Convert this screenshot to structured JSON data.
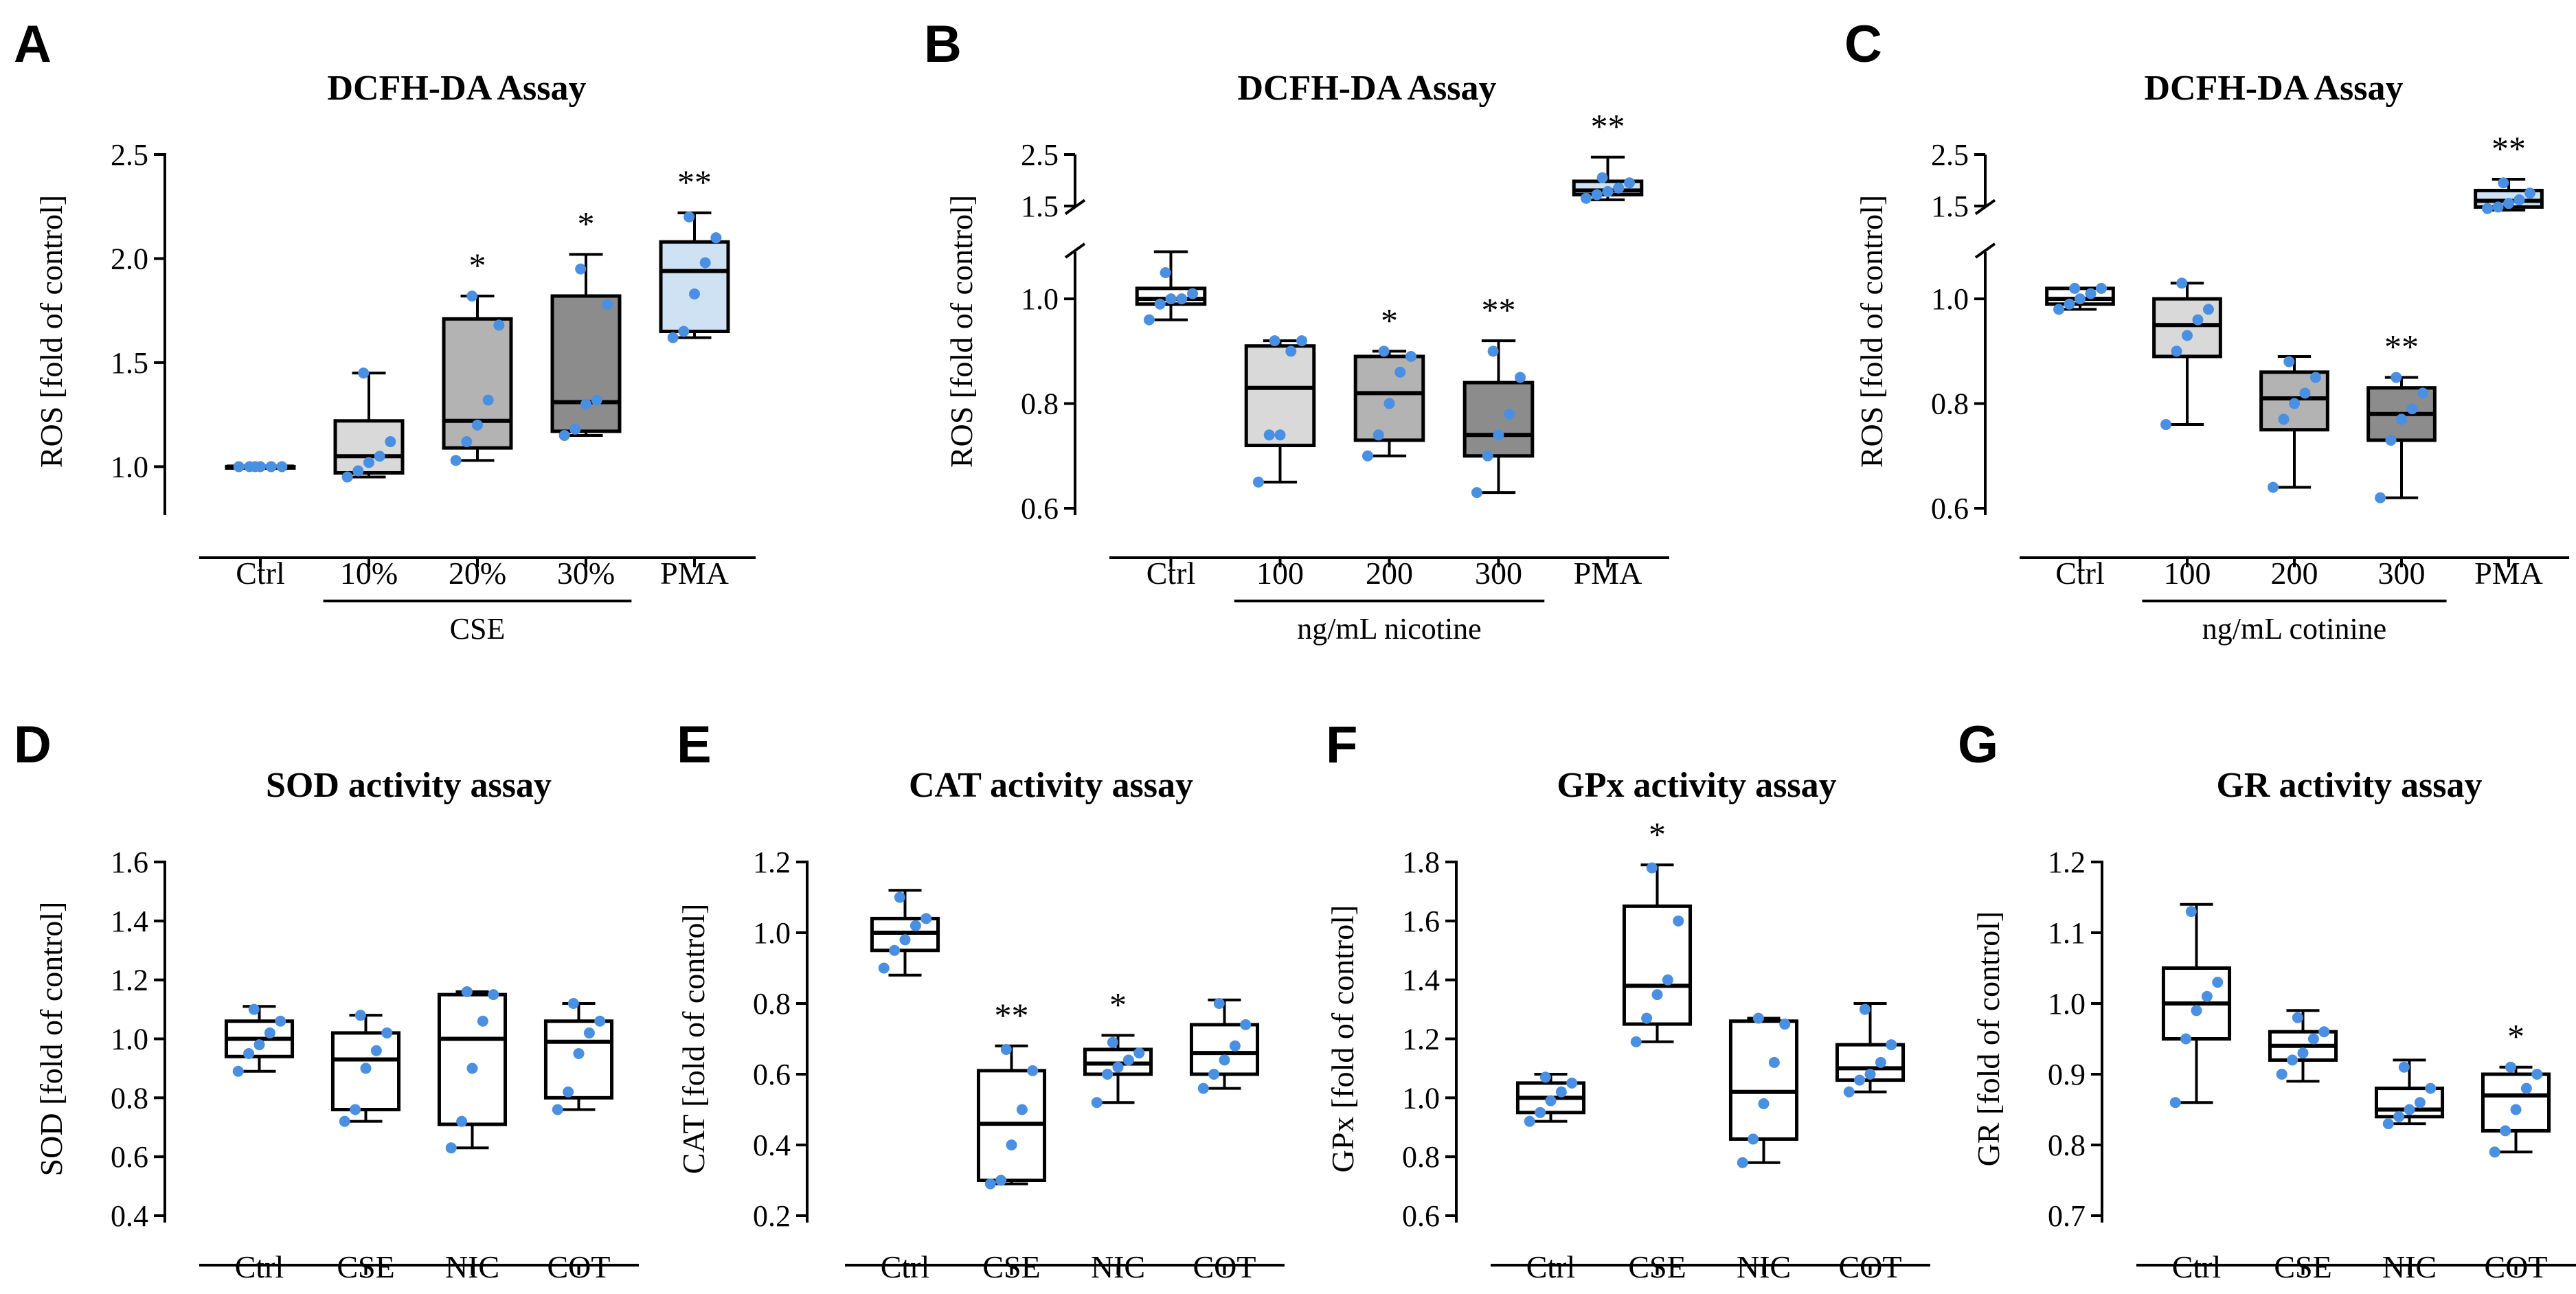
{
  "point_color": "#4a90e2",
  "chart_data": [
    {
      "id": "A",
      "letter": "A",
      "type": "box",
      "title": "DCFH-DA Assay",
      "ylabel": "ROS [fold of control]",
      "ylim": [
        0.8,
        2.5
      ],
      "yticks": [
        "1.0",
        "1.5",
        "2.0",
        "2.5"
      ],
      "ytick_values": [
        1.0,
        1.5,
        2.0,
        2.5
      ],
      "categories": [
        "Ctrl",
        "10%",
        "20%",
        "30%",
        "PMA"
      ],
      "group": {
        "label": "CSE",
        "from": 1,
        "to": 3
      },
      "boxes": [
        {
          "whisker_low": 1.0,
          "q1": 1.0,
          "median": 1.0,
          "q3": 1.0,
          "whisker_high": 1.0,
          "points": [
            1.0,
            1.0,
            1.0,
            1.0,
            1.0,
            1.0
          ],
          "fill": "#ffffff",
          "sig": ""
        },
        {
          "whisker_low": 0.95,
          "q1": 0.97,
          "median": 1.05,
          "q3": 1.22,
          "whisker_high": 1.45,
          "points": [
            0.95,
            0.98,
            1.02,
            1.05,
            1.12,
            1.45
          ],
          "fill": "#d9d9d9",
          "sig": ""
        },
        {
          "whisker_low": 1.03,
          "q1": 1.09,
          "median": 1.22,
          "q3": 1.71,
          "whisker_high": 1.82,
          "points": [
            1.03,
            1.12,
            1.2,
            1.32,
            1.68,
            1.82
          ],
          "fill": "#b3b3b3",
          "sig": "*"
        },
        {
          "whisker_low": 1.15,
          "q1": 1.17,
          "median": 1.31,
          "q3": 1.82,
          "whisker_high": 2.02,
          "points": [
            1.15,
            1.18,
            1.3,
            1.32,
            1.78,
            1.95
          ],
          "fill": "#8c8c8c",
          "sig": "*"
        },
        {
          "whisker_low": 1.62,
          "q1": 1.65,
          "median": 1.94,
          "q3": 2.08,
          "whisker_high": 2.22,
          "points": [
            1.62,
            1.65,
            1.83,
            1.98,
            2.1,
            2.2
          ],
          "fill": "#cfe2f3",
          "sig": "**"
        }
      ]
    },
    {
      "id": "B",
      "letter": "B",
      "type": "box",
      "title": "DCFH-DA Assay",
      "ylabel": "ROS [fold of control]",
      "ylim": [
        0.6,
        2.5
      ],
      "axis_break": [
        1.1,
        1.4
      ],
      "yticks": [
        "0.6",
        "0.8",
        "1.0",
        "1.5",
        "2.5"
      ],
      "ytick_values": [
        0.6,
        0.8,
        1.0,
        1.5,
        2.5
      ],
      "categories": [
        "Ctrl",
        "100",
        "200",
        "300",
        "PMA"
      ],
      "group": {
        "label": "ng/mL nicotine",
        "from": 1,
        "to": 3
      },
      "boxes": [
        {
          "whisker_low": 0.96,
          "q1": 0.99,
          "median": 1.0,
          "q3": 1.02,
          "whisker_high": 1.09,
          "points": [
            0.96,
            0.99,
            1.0,
            1.0,
            1.01,
            1.05
          ],
          "fill": "#ffffff",
          "sig": ""
        },
        {
          "whisker_low": 0.65,
          "q1": 0.72,
          "median": 0.83,
          "q3": 0.91,
          "whisker_high": 0.92,
          "points": [
            0.65,
            0.74,
            0.74,
            0.9,
            0.92,
            0.92
          ],
          "fill": "#d9d9d9",
          "sig": ""
        },
        {
          "whisker_low": 0.7,
          "q1": 0.73,
          "median": 0.82,
          "q3": 0.89,
          "whisker_high": 0.9,
          "points": [
            0.7,
            0.74,
            0.8,
            0.86,
            0.89,
            0.9
          ],
          "fill": "#b3b3b3",
          "sig": "*"
        },
        {
          "whisker_low": 0.63,
          "q1": 0.7,
          "median": 0.74,
          "q3": 0.84,
          "whisker_high": 0.92,
          "points": [
            0.63,
            0.7,
            0.74,
            0.78,
            0.85,
            0.9
          ],
          "fill": "#8c8c8c",
          "sig": "**"
        },
        {
          "whisker_low": 1.62,
          "q1": 1.72,
          "median": 1.8,
          "q3": 1.98,
          "whisker_high": 2.45,
          "points": [
            1.65,
            1.72,
            1.78,
            1.85,
            1.95,
            2.05
          ],
          "fill": "#cfe2f3",
          "sig": "**"
        }
      ]
    },
    {
      "id": "C",
      "letter": "C",
      "type": "box",
      "title": "DCFH-DA Assay",
      "ylabel": "ROS [fold of control]",
      "ylim": [
        0.6,
        2.5
      ],
      "axis_break": [
        1.1,
        1.4
      ],
      "yticks": [
        "0.6",
        "0.8",
        "1.0",
        "1.5",
        "2.5"
      ],
      "ytick_values": [
        0.6,
        0.8,
        1.0,
        1.5,
        2.5
      ],
      "categories": [
        "Ctrl",
        "100",
        "200",
        "300",
        "PMA"
      ],
      "group": {
        "label": "ng/mL cotinine",
        "from": 1,
        "to": 3
      },
      "boxes": [
        {
          "whisker_low": 0.98,
          "q1": 0.99,
          "median": 1.0,
          "q3": 1.02,
          "whisker_high": 1.02,
          "points": [
            0.98,
            0.99,
            1.0,
            1.01,
            1.02,
            1.02
          ],
          "fill": "#ffffff",
          "sig": ""
        },
        {
          "whisker_low": 0.76,
          "q1": 0.89,
          "median": 0.95,
          "q3": 1.0,
          "whisker_high": 1.03,
          "points": [
            0.76,
            0.9,
            0.93,
            0.96,
            0.98,
            1.03
          ],
          "fill": "#d9d9d9",
          "sig": ""
        },
        {
          "whisker_low": 0.64,
          "q1": 0.75,
          "median": 0.81,
          "q3": 0.86,
          "whisker_high": 0.89,
          "points": [
            0.64,
            0.77,
            0.8,
            0.82,
            0.85,
            0.88
          ],
          "fill": "#b3b3b3",
          "sig": ""
        },
        {
          "whisker_low": 0.62,
          "q1": 0.73,
          "median": 0.78,
          "q3": 0.83,
          "whisker_high": 0.85,
          "points": [
            0.62,
            0.73,
            0.77,
            0.79,
            0.82,
            0.85
          ],
          "fill": "#8c8c8c",
          "sig": "**"
        },
        {
          "whisker_low": 1.42,
          "q1": 1.48,
          "median": 1.6,
          "q3": 1.8,
          "whisker_high": 2.02,
          "points": [
            1.45,
            1.48,
            1.55,
            1.62,
            1.75,
            1.95
          ],
          "fill": "#cfe2f3",
          "sig": "**"
        }
      ]
    },
    {
      "id": "D",
      "letter": "D",
      "type": "box",
      "title": "SOD activity assay",
      "ylabel": "SOD [fold of control]",
      "ylim": [
        0.4,
        1.6
      ],
      "yticks": [
        "0.4",
        "0.6",
        "0.8",
        "1.0",
        "1.2",
        "1.4",
        "1.6"
      ],
      "ytick_values": [
        0.4,
        0.6,
        0.8,
        1.0,
        1.2,
        1.4,
        1.6
      ],
      "categories": [
        "Ctrl",
        "CSE",
        "NIC",
        "COT"
      ],
      "boxes": [
        {
          "whisker_low": 0.89,
          "q1": 0.94,
          "median": 1.0,
          "q3": 1.06,
          "whisker_high": 1.11,
          "points": [
            0.89,
            0.95,
            0.98,
            1.02,
            1.06,
            1.1
          ],
          "fill": "#ffffff",
          "sig": ""
        },
        {
          "whisker_low": 0.72,
          "q1": 0.76,
          "median": 0.93,
          "q3": 1.02,
          "whisker_high": 1.08,
          "points": [
            0.72,
            0.76,
            0.9,
            0.96,
            1.02,
            1.08
          ],
          "fill": "#ffffff",
          "sig": ""
        },
        {
          "whisker_low": 0.63,
          "q1": 0.71,
          "median": 1.0,
          "q3": 1.15,
          "whisker_high": 1.16,
          "points": [
            0.63,
            0.72,
            0.9,
            1.06,
            1.15,
            1.16
          ],
          "fill": "#ffffff",
          "sig": ""
        },
        {
          "whisker_low": 0.76,
          "q1": 0.8,
          "median": 0.99,
          "q3": 1.06,
          "whisker_high": 1.12,
          "points": [
            0.76,
            0.82,
            0.95,
            1.02,
            1.06,
            1.12
          ],
          "fill": "#ffffff",
          "sig": ""
        }
      ]
    },
    {
      "id": "E",
      "letter": "E",
      "type": "box",
      "title": "CAT activity assay",
      "ylabel": "CAT [fold of control]",
      "ylim": [
        0.2,
        1.2
      ],
      "yticks": [
        "0.2",
        "0.4",
        "0.6",
        "0.8",
        "1.0",
        "1.2"
      ],
      "ytick_values": [
        0.2,
        0.4,
        0.6,
        0.8,
        1.0,
        1.2
      ],
      "categories": [
        "Ctrl",
        "CSE",
        "NIC",
        "COT"
      ],
      "boxes": [
        {
          "whisker_low": 0.88,
          "q1": 0.95,
          "median": 1.0,
          "q3": 1.04,
          "whisker_high": 1.12,
          "points": [
            0.9,
            0.95,
            0.98,
            1.02,
            1.04,
            1.1
          ],
          "fill": "#ffffff",
          "sig": ""
        },
        {
          "whisker_low": 0.29,
          "q1": 0.3,
          "median": 0.46,
          "q3": 0.61,
          "whisker_high": 0.68,
          "points": [
            0.29,
            0.3,
            0.4,
            0.5,
            0.61,
            0.67
          ],
          "fill": "#ffffff",
          "sig": "**"
        },
        {
          "whisker_low": 0.52,
          "q1": 0.6,
          "median": 0.63,
          "q3": 0.67,
          "whisker_high": 0.71,
          "points": [
            0.52,
            0.6,
            0.62,
            0.64,
            0.66,
            0.69
          ],
          "fill": "#ffffff",
          "sig": "*"
        },
        {
          "whisker_low": 0.56,
          "q1": 0.6,
          "median": 0.66,
          "q3": 0.74,
          "whisker_high": 0.81,
          "points": [
            0.56,
            0.6,
            0.64,
            0.68,
            0.74,
            0.8
          ],
          "fill": "#ffffff",
          "sig": ""
        }
      ]
    },
    {
      "id": "F",
      "letter": "F",
      "type": "box",
      "title": "GPx activity assay",
      "ylabel": "GPx [fold of control]",
      "ylim": [
        0.6,
        1.8
      ],
      "yticks": [
        "0.6",
        "0.8",
        "1.0",
        "1.2",
        "1.4",
        "1.6",
        "1.8"
      ],
      "ytick_values": [
        0.6,
        0.8,
        1.0,
        1.2,
        1.4,
        1.6,
        1.8
      ],
      "categories": [
        "Ctrl",
        "CSE",
        "NIC",
        "COT"
      ],
      "boxes": [
        {
          "whisker_low": 0.92,
          "q1": 0.95,
          "median": 1.0,
          "q3": 1.05,
          "whisker_high": 1.08,
          "points": [
            0.92,
            0.95,
            0.99,
            1.02,
            1.05,
            1.07
          ],
          "fill": "#ffffff",
          "sig": ""
        },
        {
          "whisker_low": 1.19,
          "q1": 1.25,
          "median": 1.38,
          "q3": 1.65,
          "whisker_high": 1.79,
          "points": [
            1.19,
            1.27,
            1.35,
            1.4,
            1.6,
            1.78
          ],
          "fill": "#ffffff",
          "sig": "*"
        },
        {
          "whisker_low": 0.78,
          "q1": 0.86,
          "median": 1.02,
          "q3": 1.26,
          "whisker_high": 1.27,
          "points": [
            0.78,
            0.86,
            0.98,
            1.12,
            1.25,
            1.27
          ],
          "fill": "#ffffff",
          "sig": ""
        },
        {
          "whisker_low": 1.02,
          "q1": 1.06,
          "median": 1.1,
          "q3": 1.18,
          "whisker_high": 1.32,
          "points": [
            1.02,
            1.06,
            1.08,
            1.12,
            1.18,
            1.3
          ],
          "fill": "#ffffff",
          "sig": ""
        }
      ]
    },
    {
      "id": "G",
      "letter": "G",
      "type": "box",
      "title": "GR activity assay",
      "ylabel": "GR [fold of control]",
      "ylim": [
        0.7,
        1.2
      ],
      "yticks": [
        "0.7",
        "0.8",
        "0.9",
        "1.0",
        "1.1",
        "1.2"
      ],
      "ytick_values": [
        0.7,
        0.8,
        0.9,
        1.0,
        1.1,
        1.2
      ],
      "categories": [
        "Ctrl",
        "CSE",
        "NIC",
        "COT"
      ],
      "boxes": [
        {
          "whisker_low": 0.86,
          "q1": 0.95,
          "median": 1.0,
          "q3": 1.05,
          "whisker_high": 1.14,
          "points": [
            0.86,
            0.95,
            0.99,
            1.01,
            1.03,
            1.13
          ],
          "fill": "#ffffff",
          "sig": ""
        },
        {
          "whisker_low": 0.89,
          "q1": 0.92,
          "median": 0.94,
          "q3": 0.96,
          "whisker_high": 0.99,
          "points": [
            0.9,
            0.92,
            0.93,
            0.95,
            0.96,
            0.98
          ],
          "fill": "#ffffff",
          "sig": ""
        },
        {
          "whisker_low": 0.83,
          "q1": 0.84,
          "median": 0.85,
          "q3": 0.88,
          "whisker_high": 0.92,
          "points": [
            0.83,
            0.84,
            0.85,
            0.86,
            0.88,
            0.91
          ],
          "fill": "#ffffff",
          "sig": ""
        },
        {
          "whisker_low": 0.79,
          "q1": 0.82,
          "median": 0.87,
          "q3": 0.9,
          "whisker_high": 0.91,
          "points": [
            0.79,
            0.82,
            0.85,
            0.88,
            0.9,
            0.91
          ],
          "fill": "#ffffff",
          "sig": "*"
        }
      ]
    }
  ]
}
